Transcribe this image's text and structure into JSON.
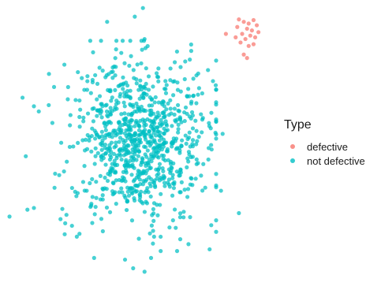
{
  "chart_data": {
    "type": "scatter",
    "title": "",
    "xlabel": "",
    "ylabel": "",
    "axes_visible": false,
    "grid": false,
    "xlim": [
      -4,
      4
    ],
    "ylim": [
      -4,
      4
    ],
    "legend": {
      "title": "Type",
      "position": "right",
      "entries": [
        {
          "label": "defective",
          "color": "#F8766D"
        },
        {
          "label": "not defective",
          "color": "#00BFC4"
        }
      ]
    },
    "series": [
      {
        "name": "defective",
        "color": "#F8766D",
        "points": [
          [
            3.1,
            3.62
          ],
          [
            3.25,
            3.55
          ],
          [
            3.4,
            3.5
          ],
          [
            3.55,
            3.6
          ],
          [
            3.05,
            3.4
          ],
          [
            3.35,
            3.35
          ],
          [
            3.5,
            3.3
          ],
          [
            3.65,
            3.45
          ],
          [
            3.2,
            3.2
          ],
          [
            3.45,
            3.15
          ],
          [
            3.6,
            3.1
          ],
          [
            3.3,
            3.05
          ],
          [
            3.15,
            2.95
          ],
          [
            3.4,
            2.85
          ],
          [
            2.7,
            3.2
          ],
          [
            3.55,
            2.9
          ],
          [
            3.25,
            2.6
          ],
          [
            3.35,
            2.5
          ],
          [
            3.7,
            3.25
          ],
          [
            3.0,
            3.1
          ]
        ]
      },
      {
        "name": "not defective",
        "color": "#00BFC4",
        "n": 900,
        "distribution": {
          "mean": [
            0.0,
            0.1
          ],
          "sd": [
            1.05,
            1.15
          ]
        },
        "outliers": [
          [
            -0.95,
            3.55
          ],
          [
            -0.1,
            3.7
          ],
          [
            0.15,
            3.95
          ],
          [
            0.2,
            3.05
          ],
          [
            1.85,
            2.05
          ],
          [
            1.7,
            1.9
          ],
          [
            1.45,
            2.4
          ],
          [
            2.15,
            2.15
          ],
          [
            -3.55,
            1.35
          ],
          [
            -3.2,
            1.1
          ],
          [
            -3.05,
            0.95
          ],
          [
            -3.45,
            -0.35
          ],
          [
            -3.95,
            -2.1
          ],
          [
            -3.2,
            -1.85
          ],
          [
            -2.2,
            -2.05
          ],
          [
            2.4,
            1.15
          ],
          [
            2.6,
            0.3
          ],
          [
            2.55,
            -1.35
          ],
          [
            3.1,
            -2.0
          ],
          [
            2.25,
            -2.35
          ],
          [
            1.55,
            -2.9
          ],
          [
            -1.35,
            -3.3
          ],
          [
            -0.4,
            -3.35
          ],
          [
            -0.15,
            -3.6
          ],
          [
            0.2,
            -3.7
          ],
          [
            0.4,
            -3.3
          ],
          [
            1.2,
            -3.1
          ],
          [
            -1.8,
            -2.6
          ],
          [
            -3.4,
            -1.9
          ],
          [
            2.2,
            -3.05
          ]
        ]
      }
    ]
  }
}
